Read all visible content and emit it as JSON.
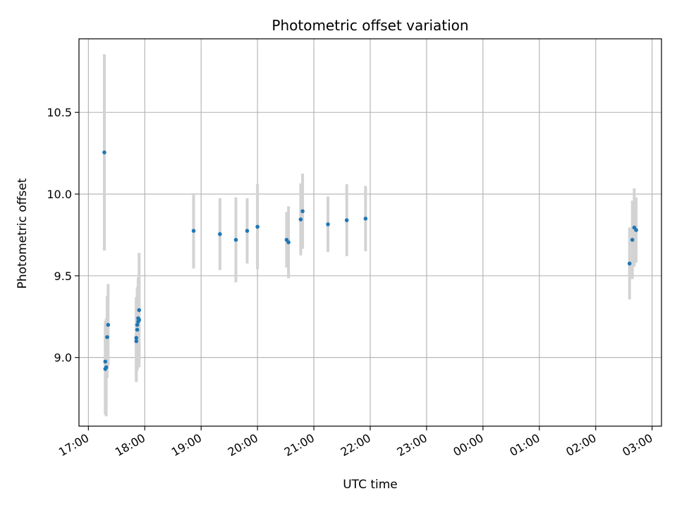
{
  "chart_data": {
    "type": "scatter",
    "title": "Photometric offset variation",
    "xlabel": "UTC time",
    "ylabel": "Photometric offset",
    "grid": true,
    "x_axis": {
      "kind": "time",
      "range": [
        "16:50",
        "03:10"
      ],
      "ticks": [
        "17:00",
        "18:00",
        "19:00",
        "20:00",
        "21:00",
        "22:00",
        "23:00",
        "00:00",
        "01:00",
        "02:00",
        "03:00"
      ]
    },
    "y_axis": {
      "range": [
        8.58,
        10.95
      ],
      "ticks": [
        9.0,
        9.5,
        10.0,
        10.5
      ],
      "tick_labels": [
        "9.0",
        "9.5",
        "10.0",
        "10.5"
      ]
    },
    "colors": {
      "marker": "#1f77b4",
      "errorbar": "#d3d3d3",
      "grid": "#b0b0b0"
    },
    "points": [
      {
        "x": "17:17",
        "y": 10.255,
        "err": 0.6
      },
      {
        "x": "17:18",
        "y": 8.975,
        "err": 0.25
      },
      {
        "x": "17:18",
        "y": 8.93,
        "err": 0.28
      },
      {
        "x": "17:19",
        "y": 8.94,
        "err": 0.3
      },
      {
        "x": "17:20",
        "y": 9.125,
        "err": 0.25
      },
      {
        "x": "17:21",
        "y": 9.2,
        "err": 0.25
      },
      {
        "x": "17:51",
        "y": 9.1,
        "err": 0.25
      },
      {
        "x": "17:51",
        "y": 9.12,
        "err": 0.25
      },
      {
        "x": "17:52",
        "y": 9.17,
        "err": 0.25
      },
      {
        "x": "17:52",
        "y": 9.2,
        "err": 0.23
      },
      {
        "x": "17:53",
        "y": 9.22,
        "err": 0.25
      },
      {
        "x": "17:53",
        "y": 9.24,
        "err": 0.25
      },
      {
        "x": "17:54",
        "y": 9.29,
        "err": 0.35
      },
      {
        "x": "17:54",
        "y": 9.23,
        "err": 0.25
      },
      {
        "x": "18:52",
        "y": 9.775,
        "err": 0.23
      },
      {
        "x": "19:20",
        "y": 9.755,
        "err": 0.22
      },
      {
        "x": "19:37",
        "y": 9.72,
        "err": 0.26
      },
      {
        "x": "19:49",
        "y": 9.775,
        "err": 0.2
      },
      {
        "x": "20:00",
        "y": 9.8,
        "err": 0.26
      },
      {
        "x": "20:31",
        "y": 9.72,
        "err": 0.17
      },
      {
        "x": "20:33",
        "y": 9.705,
        "err": 0.22
      },
      {
        "x": "20:46",
        "y": 9.845,
        "err": 0.22
      },
      {
        "x": "20:48",
        "y": 9.895,
        "err": 0.23
      },
      {
        "x": "21:15",
        "y": 9.815,
        "err": 0.17
      },
      {
        "x": "21:35",
        "y": 9.84,
        "err": 0.22
      },
      {
        "x": "21:55",
        "y": 9.85,
        "err": 0.2
      },
      {
        "x": "02:36",
        "y": 9.575,
        "err": 0.22
      },
      {
        "x": "02:39",
        "y": 9.72,
        "err": 0.24
      },
      {
        "x": "02:41",
        "y": 9.795,
        "err": 0.24
      },
      {
        "x": "02:43",
        "y": 9.78,
        "err": 0.2
      }
    ]
  }
}
